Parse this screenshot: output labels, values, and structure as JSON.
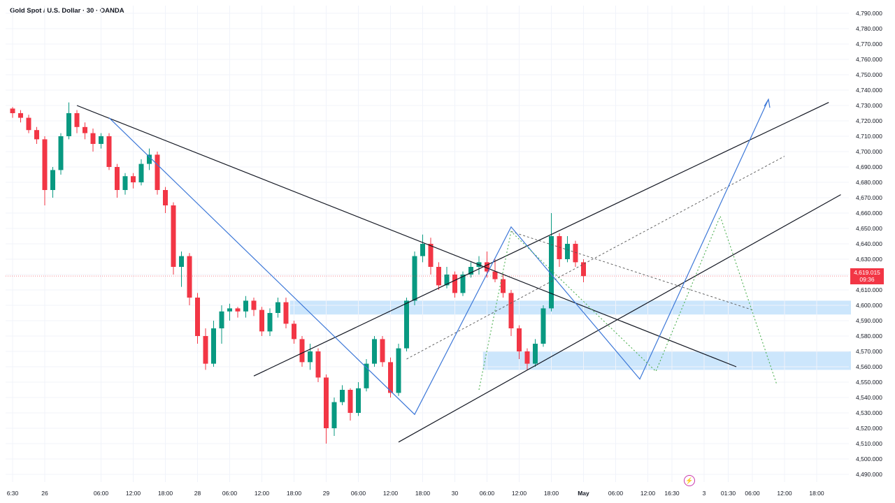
{
  "header": {
    "title": "Gold Spot / U.S. Dollar · 30 · OANDA"
  },
  "current_price": {
    "value": "4,619.015",
    "countdown": "09:36",
    "color": "#f23645"
  },
  "colors": {
    "up": "#089981",
    "down": "#f23645",
    "trend": "#131722",
    "blue": "#3d78d8",
    "zone": "#bbdefb",
    "green_dotted": "#4caf50"
  },
  "event_icon": "lightning-icon",
  "chart_data": {
    "type": "candlestick",
    "title": "Gold Spot / U.S. Dollar · 30 · OANDA",
    "ylim": [
      4485,
      4795
    ],
    "y_ticks": [
      "4,790.000",
      "4,780.000",
      "4,770.000",
      "4,760.000",
      "4,750.000",
      "4,740.000",
      "4,730.000",
      "4,720.000",
      "4,710.000",
      "4,700.000",
      "4,690.000",
      "4,680.000",
      "4,670.000",
      "4,660.000",
      "4,650.000",
      "4,640.000",
      "4,630.000",
      "4,620.000",
      "4,610.000",
      "4,600.000",
      "4,590.000",
      "4,580.000",
      "4,570.000",
      "4,560.000",
      "4,550.000",
      "4,540.000",
      "4,530.000",
      "4,520.000",
      "4,510.000",
      "4,500.000",
      "4,490.000"
    ],
    "x_ticks": [
      {
        "label": "6:30",
        "t": 0
      },
      {
        "label": "26",
        "t": 4
      },
      {
        "label": "06:00",
        "t": 11
      },
      {
        "label": "12:00",
        "t": 15
      },
      {
        "label": "18:00",
        "t": 19
      },
      {
        "label": "28",
        "t": 23
      },
      {
        "label": "06:00",
        "t": 27
      },
      {
        "label": "12:00",
        "t": 31
      },
      {
        "label": "18:00",
        "t": 35
      },
      {
        "label": "29",
        "t": 39
      },
      {
        "label": "06:00",
        "t": 43
      },
      {
        "label": "12:00",
        "t": 47
      },
      {
        "label": "18:00",
        "t": 51
      },
      {
        "label": "30",
        "t": 55
      },
      {
        "label": "06:00",
        "t": 59
      },
      {
        "label": "12:00",
        "t": 63
      },
      {
        "label": "18:00",
        "t": 67
      },
      {
        "label": "May",
        "t": 71,
        "bold": true
      },
      {
        "label": "06:00",
        "t": 75
      },
      {
        "label": "12:00",
        "t": 79
      },
      {
        "label": "16:30",
        "t": 82
      },
      {
        "label": "3",
        "t": 86
      },
      {
        "label": "01:30",
        "t": 89
      },
      {
        "label": "06:00",
        "t": 92
      },
      {
        "label": "12:00",
        "t": 96
      },
      {
        "label": "18:00",
        "t": 100
      }
    ],
    "candles": [
      [
        4728,
        4729,
        4722,
        4725
      ],
      [
        4725,
        4727,
        4719,
        4722
      ],
      [
        4722,
        4724,
        4712,
        4714
      ],
      [
        4714,
        4716,
        4705,
        4708
      ],
      [
        4708,
        4710,
        4665,
        4675
      ],
      [
        4675,
        4690,
        4670,
        4688
      ],
      [
        4688,
        4712,
        4685,
        4710
      ],
      [
        4710,
        4732,
        4708,
        4725
      ],
      [
        4725,
        4727,
        4712,
        4716
      ],
      [
        4716,
        4719,
        4708,
        4712
      ],
      [
        4712,
        4715,
        4700,
        4705
      ],
      [
        4705,
        4712,
        4702,
        4710
      ],
      [
        4710,
        4712,
        4688,
        4690
      ],
      [
        4690,
        4692,
        4670,
        4675
      ],
      [
        4675,
        4686,
        4672,
        4684
      ],
      [
        4684,
        4686,
        4676,
        4680
      ],
      [
        4680,
        4695,
        4678,
        4692
      ],
      [
        4692,
        4702,
        4688,
        4698
      ],
      [
        4698,
        4700,
        4672,
        4675
      ],
      [
        4675,
        4677,
        4660,
        4665
      ],
      [
        4665,
        4667,
        4620,
        4625
      ],
      [
        4625,
        4635,
        4612,
        4632
      ],
      [
        4632,
        4634,
        4600,
        4605
      ],
      [
        4605,
        4608,
        4575,
        4580
      ],
      [
        4580,
        4585,
        4558,
        4562
      ],
      [
        4562,
        4590,
        4560,
        4585
      ],
      [
        4585,
        4600,
        4575,
        4596
      ],
      [
        4596,
        4601,
        4590,
        4598
      ],
      [
        4598,
        4599,
        4592,
        4596
      ],
      [
        4596,
        4606,
        4592,
        4603
      ],
      [
        4603,
        4605,
        4593,
        4597
      ],
      [
        4597,
        4599,
        4580,
        4583
      ],
      [
        4583,
        4598,
        4580,
        4595
      ],
      [
        4595,
        4605,
        4592,
        4602
      ],
      [
        4602,
        4605,
        4585,
        4588
      ],
      [
        4588,
        4590,
        4575,
        4578
      ],
      [
        4578,
        4580,
        4560,
        4563
      ],
      [
        4563,
        4575,
        4558,
        4570
      ],
      [
        4570,
        4572,
        4550,
        4553
      ],
      [
        4553,
        4555,
        4510,
        4520
      ],
      [
        4520,
        4540,
        4515,
        4537
      ],
      [
        4537,
        4548,
        4535,
        4545
      ],
      [
        4545,
        4546,
        4525,
        4530
      ],
      [
        4530,
        4550,
        4528,
        4546
      ],
      [
        4546,
        4565,
        4544,
        4562
      ],
      [
        4562,
        4580,
        4560,
        4578
      ],
      [
        4578,
        4580,
        4560,
        4563
      ],
      [
        4563,
        4566,
        4540,
        4543
      ],
      [
        4543,
        4575,
        4541,
        4572
      ],
      [
        4572,
        4605,
        4570,
        4603
      ],
      [
        4603,
        4635,
        4600,
        4632
      ],
      [
        4632,
        4646,
        4628,
        4640
      ],
      [
        4640,
        4644,
        4620,
        4625
      ],
      [
        4625,
        4628,
        4610,
        4613
      ],
      [
        4613,
        4625,
        4611,
        4620
      ],
      [
        4620,
        4622,
        4605,
        4608
      ],
      [
        4608,
        4622,
        4606,
        4620
      ],
      [
        4620,
        4628,
        4618,
        4625
      ],
      [
        4625,
        4632,
        4620,
        4628
      ],
      [
        4628,
        4635,
        4618,
        4622
      ],
      [
        4622,
        4630,
        4615,
        4617
      ],
      [
        4617,
        4620,
        4605,
        4608
      ],
      [
        4608,
        4610,
        4580,
        4585
      ],
      [
        4585,
        4587,
        4565,
        4570
      ],
      [
        4570,
        4572,
        4558,
        4562
      ],
      [
        4562,
        4578,
        4560,
        4575
      ],
      [
        4575,
        4600,
        4573,
        4598
      ],
      [
        4598,
        4660,
        4596,
        4645
      ],
      [
        4645,
        4647,
        4625,
        4630
      ],
      [
        4630,
        4645,
        4628,
        4640
      ],
      [
        4640,
        4642,
        4625,
        4628
      ],
      [
        4628,
        4630,
        4615,
        4619.015
      ]
    ]
  }
}
